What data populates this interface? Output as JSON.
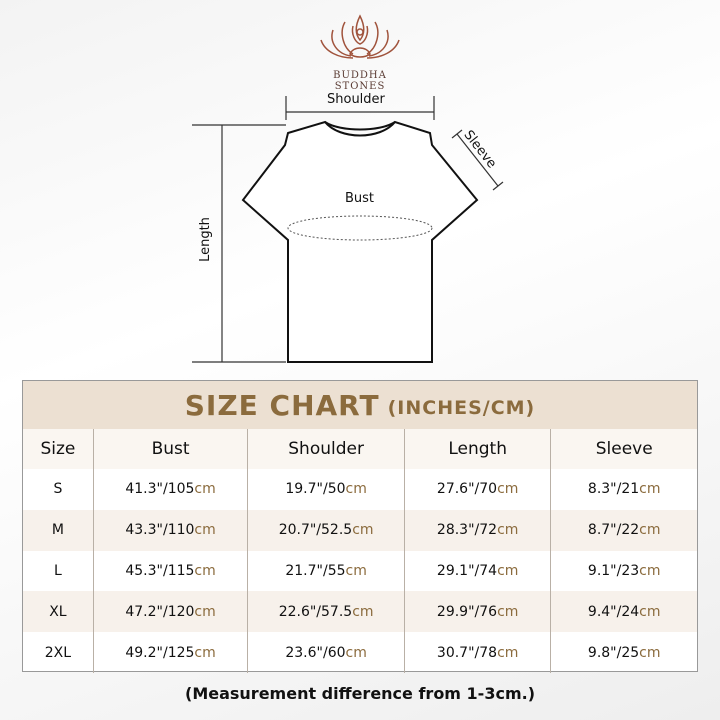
{
  "brand": {
    "name": "BUDDHA STONES",
    "logo_icon": "lotus-meditation-icon",
    "color": "#7a3f2e"
  },
  "diagram": {
    "shoulder": "Shoulder",
    "sleeve": "Sleeve",
    "bust": "Bust",
    "length": "Length"
  },
  "table": {
    "title": "SIZE CHART",
    "title_units": "(INCHES/CM)",
    "headers": [
      "Size",
      "Bust",
      "Shoulder",
      "Length",
      "Sleeve"
    ],
    "rows": [
      {
        "size": "S",
        "cells": [
          [
            "41.3\"/105",
            "cm"
          ],
          [
            "19.7\"/50",
            "cm"
          ],
          [
            "27.6\"/70",
            "cm"
          ],
          [
            "8.3\"/21",
            "cm"
          ]
        ]
      },
      {
        "size": "M",
        "cells": [
          [
            "43.3\"/110",
            "cm"
          ],
          [
            "20.7\"/52.5",
            "cm"
          ],
          [
            "28.3\"/72",
            "cm"
          ],
          [
            "8.7\"/22",
            "cm"
          ]
        ]
      },
      {
        "size": "L",
        "cells": [
          [
            "45.3\"/115",
            "cm"
          ],
          [
            "21.7\"/55",
            "cm"
          ],
          [
            "29.1\"/74",
            "cm"
          ],
          [
            "9.1\"/23",
            "cm"
          ]
        ]
      },
      {
        "size": "XL",
        "cells": [
          [
            "47.2\"/120",
            "cm"
          ],
          [
            "22.6\"/57.5",
            "cm"
          ],
          [
            "29.9\"/76",
            "cm"
          ],
          [
            "9.4\"/24",
            "cm"
          ]
        ]
      },
      {
        "size": "2XL",
        "cells": [
          [
            "49.2\"/125",
            "cm"
          ],
          [
            "23.6\"/60",
            "cm"
          ],
          [
            "30.7\"/78",
            "cm"
          ],
          [
            "9.8\"/25",
            "cm"
          ]
        ]
      }
    ]
  },
  "footnote": "(Measurement difference from 1-3cm.)",
  "colors": {
    "accent": "#8b6b3d",
    "title_band": "#ece0d2"
  }
}
